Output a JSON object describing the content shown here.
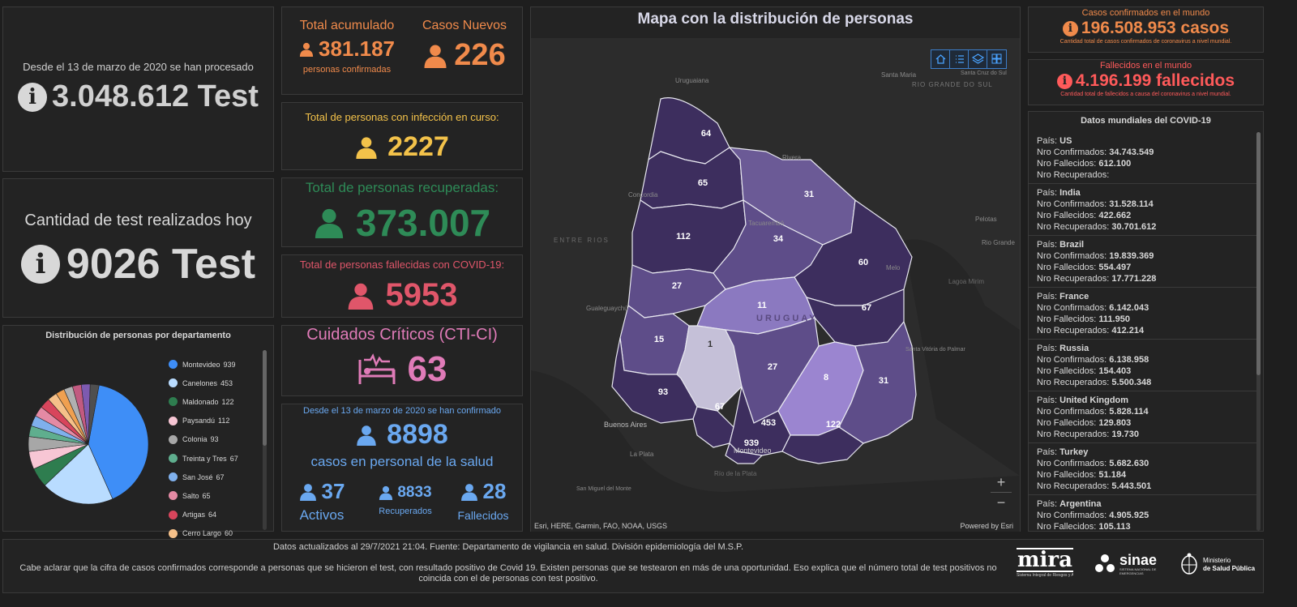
{
  "tests_total": {
    "caption": "Desde el 13 de marzo de 2020 se han procesado",
    "value": "3.048.612 Test"
  },
  "tests_today": {
    "caption": "Cantidad de test realizados hoy",
    "value": "9026 Test"
  },
  "dept_chart": {
    "title": "Distribución de personas por departamento"
  },
  "chart_data": {
    "type": "pie",
    "title": "Distribución de personas por departamento",
    "categories": [
      "Montevideo",
      "Canelones",
      "Maldonado",
      "Paysandú",
      "Colonia",
      "Treinta y Tres",
      "San José",
      "Salto",
      "Artigas",
      "Cerro Largo"
    ],
    "values": [
      939,
      453,
      122,
      112,
      93,
      67,
      67,
      65,
      64,
      60
    ],
    "colors": [
      "#3e8ef7",
      "#b9dcff",
      "#2e7d4f",
      "#f7c6d4",
      "#a7a7a7",
      "#5fae8e",
      "#7fb0ec",
      "#e48aa4",
      "#d8455c",
      "#f5c089"
    ],
    "extra_colors": [
      "#f0a050",
      "#b0b0b0",
      "#c25a80",
      "#7d5ab0",
      "#4f4f4f"
    ],
    "legend_position": "right"
  },
  "cumulative": {
    "title": "Total acumulado",
    "value": "381.187",
    "subtitle": "personas confirmadas"
  },
  "new_cases": {
    "title": "Casos Nuevos",
    "value": "226"
  },
  "active": {
    "title": "Total de personas con infección en curso:",
    "value": "2227"
  },
  "recovered": {
    "title": "Total de personas recuperadas:",
    "value": "373.007"
  },
  "deceased": {
    "title": "Total de personas fallecidas con COVID-19:",
    "value": "5953"
  },
  "icu": {
    "title": "Cuidados Críticos (CTI-CI)",
    "value": "63"
  },
  "health_staff": {
    "caption": "Desde el 13 de marzo de 2020 se han confirmado",
    "value": "8898",
    "subtitle": "casos en personal de la salud",
    "active_value": "37",
    "active_label": "Activos",
    "recovered_value": "8833",
    "recovered_label": "Recuperados",
    "deceased_value": "28",
    "deceased_label": "Fallecidos"
  },
  "map": {
    "title": "Mapa con la distribución de personas",
    "attribution": "Esri, HERE, Garmin, FAO, NOAA, USGS",
    "powered": "Powered by Esri",
    "country_label": "URUGUAY",
    "places": [
      "Uruguaiana",
      "Santa Maria",
      "Santa Cruz do Sul",
      "RIO GRANDE DO SUL",
      "Rivera",
      "Concordia",
      "Tacuarembó",
      "ENTRE RIOS",
      "Pelotas",
      "Rio Grande",
      "Melo",
      "Lagoa Mirim",
      "Gualeguaychú",
      "Santa Vitória do Palmar",
      "Buenos Aires",
      "La Plata",
      "Montevideo",
      "San Miguel del Monte",
      "Río de la Plata"
    ],
    "dept_values": [
      "64",
      "65",
      "31",
      "112",
      "34",
      "60",
      "27",
      "11",
      "67",
      "15",
      "1",
      "27",
      "8",
      "31",
      "93",
      "67",
      "453",
      "122",
      "939"
    ],
    "zoom_in": "+",
    "zoom_out": "−"
  },
  "world_confirmed": {
    "title": "Casos confirmados en el mundo",
    "value": "196.508.953 casos",
    "note": "Cantidad total de casos confirmados de coronavirus a nivel mundial."
  },
  "world_deaths": {
    "title": "Fallecidos en el mundo",
    "value": "4.196.199 fallecidos",
    "note": "Cantidad total de fallecidos a causa del coronavirus a nivel mundial."
  },
  "world_list": {
    "title": "Datos mundiales del COVID-19",
    "labels": {
      "country": "País: ",
      "confirmed": "Nro Confirmados: ",
      "deaths": "Nro Fallecidos: ",
      "recovered": "Nro Recuperados: "
    },
    "items": [
      {
        "country": "US",
        "confirmed": "34.743.549",
        "deaths": "612.100",
        "recovered": ""
      },
      {
        "country": "India",
        "confirmed": "31.528.114",
        "deaths": "422.662",
        "recovered": "30.701.612"
      },
      {
        "country": "Brazil",
        "confirmed": "19.839.369",
        "deaths": "554.497",
        "recovered": "17.771.228"
      },
      {
        "country": "France",
        "confirmed": "6.142.043",
        "deaths": "111.950",
        "recovered": "412.214"
      },
      {
        "country": "Russia",
        "confirmed": "6.138.958",
        "deaths": "154.403",
        "recovered": "5.500.348"
      },
      {
        "country": "United Kingdom",
        "confirmed": "5.828.114",
        "deaths": "129.803",
        "recovered": "19.730"
      },
      {
        "country": "Turkey",
        "confirmed": "5.682.630",
        "deaths": "51.184",
        "recovered": "5.443.501"
      },
      {
        "country": "Argentina",
        "confirmed": "4.905.925",
        "deaths": "105.113",
        "recovered": ""
      }
    ]
  },
  "footer": {
    "line1": "Datos actualizados al 29/7/2021 21:04. Fuente: Departamento de vigilancia en salud. División epidemiología del M.S.P.",
    "line2": "Cabe aclarar que la cifra de casos confirmados corresponde a personas que se hicieron el test, con resultado positivo de Covid 19. Existen personas que se testearon en más de una oportunidad. Eso explica que el número total de test positivos no coincida con el de personas con test positivo.",
    "logo_mira": "mira",
    "logo_mira_sub": "Sistema Integral de Riesgos y Alertamiento",
    "logo_sinae": "sinae",
    "logo_sinae_sub": "SISTEMA NACIONAL DE EMERGENCIAS",
    "logo_msp_1": "Ministerio",
    "logo_msp_2": "de Salud Pública"
  },
  "colors": {
    "orange": "#f08a4b",
    "yellow": "#f3c24a",
    "green": "#2e8b57",
    "red": "#e0566a",
    "pink": "#e07bb8",
    "blue": "#6aa8f0",
    "world_red": "#ff5a5a"
  }
}
